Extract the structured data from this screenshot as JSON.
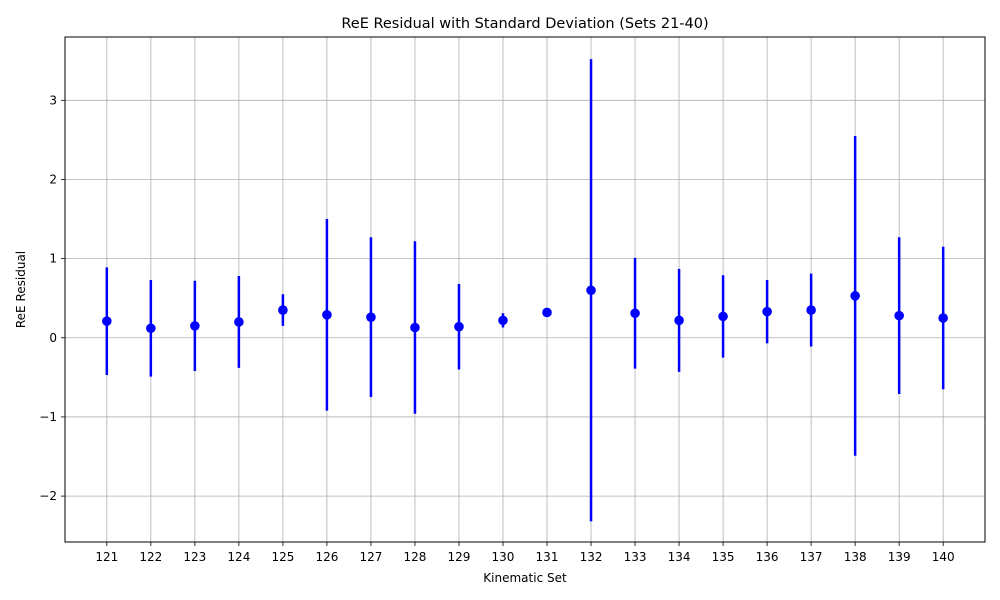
{
  "chart_data": {
    "type": "scatter",
    "subtype": "errorbar",
    "title": "ReE Residual with Standard Deviation (Sets 21-40)",
    "xlabel": "Kinematic Set",
    "ylabel": "ReE Residual",
    "categories": [
      "121",
      "122",
      "123",
      "124",
      "125",
      "126",
      "127",
      "128",
      "129",
      "130",
      "131",
      "132",
      "133",
      "134",
      "135",
      "136",
      "137",
      "138",
      "139",
      "140"
    ],
    "series": [
      {
        "values": [
          0.21,
          0.12,
          0.15,
          0.2,
          0.35,
          0.29,
          0.26,
          0.13,
          0.14,
          0.22,
          0.32,
          0.6,
          0.31,
          0.22,
          0.27,
          0.33,
          0.35,
          0.53,
          0.28,
          0.25
        ],
        "errors": [
          0.68,
          0.61,
          0.57,
          0.58,
          0.2,
          1.21,
          1.01,
          1.09,
          0.54,
          0.09,
          0.04,
          2.92,
          0.7,
          0.65,
          0.52,
          0.4,
          0.46,
          2.02,
          0.99,
          0.9
        ],
        "color": "#0000ff"
      }
    ],
    "ylim": [
      -2.58,
      3.8
    ],
    "yticks": [
      -2,
      -1,
      0,
      1,
      2,
      3
    ],
    "ytick_labels": [
      "−2",
      "−1",
      "0",
      "1",
      "2",
      "3"
    ],
    "grid": true,
    "grid_color": "#b0b0b0",
    "legend": "none"
  }
}
